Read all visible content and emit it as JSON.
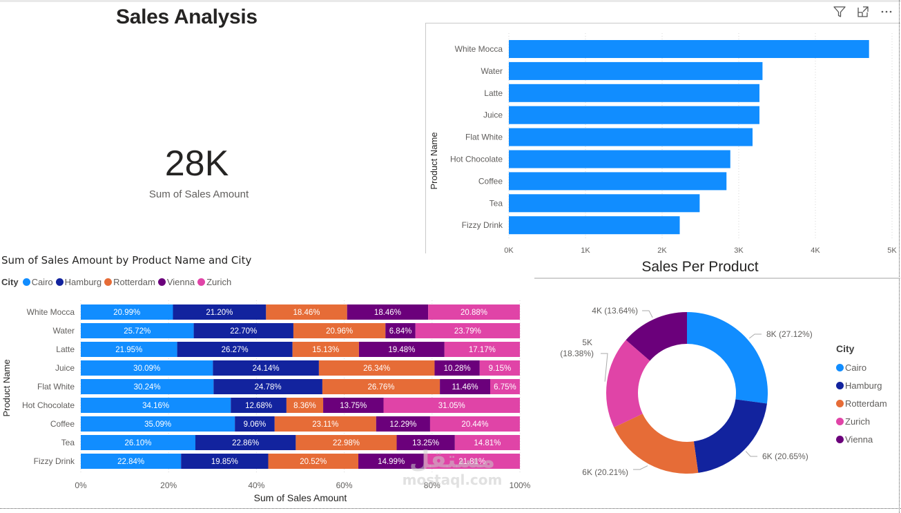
{
  "page": {
    "title": "Sales Analysis",
    "watermark_arabic": "مستقل",
    "watermark_latin": "mostaql.com"
  },
  "kpi": {
    "value": "28K",
    "label": "Sum of Sales Amount"
  },
  "visual_header": {
    "filter_icon": "filter-icon",
    "focus_icon": "focus-mode-icon",
    "more_icon": "more-options-icon"
  },
  "colors": {
    "bar": "#118DFF",
    "Cairo": "#118DFF",
    "Hamburg": "#12239E",
    "Rotterdam": "#E66C37",
    "Vienna": "#6B007B",
    "Zurich": "#E044A7"
  },
  "chart_data": [
    {
      "type": "bar",
      "orientation": "horizontal",
      "title": "Sales Per Product",
      "xlabel": "Sales Per Product",
      "ylabel": "Product Name",
      "categories": [
        "White Mocca",
        "Water",
        "Latte",
        "Juice",
        "Flat White",
        "Hot Chocolate",
        "Coffee",
        "Tea",
        "Fizzy Drink"
      ],
      "values": [
        4700,
        3310,
        3270,
        3270,
        3180,
        2890,
        2840,
        2490,
        2230
      ],
      "xlim": [
        0,
        5000
      ],
      "xticks": [
        "0K",
        "1K",
        "2K",
        "3K",
        "4K",
        "5K"
      ],
      "grid": true
    },
    {
      "type": "bar",
      "orientation": "horizontal",
      "stacked": "100%",
      "title": "Sum of Sales Amount by Product Name and City",
      "xlabel": "Sum of Sales Amount",
      "ylabel": "Product Name",
      "legend_title": "City",
      "legend_position": "top-left",
      "categories": [
        "White Mocca",
        "Water",
        "Latte",
        "Juice",
        "Flat White",
        "Hot Chocolate",
        "Coffee",
        "Tea",
        "Fizzy Drink"
      ],
      "series": [
        {
          "name": "Cairo",
          "values": [
            20.99,
            25.72,
            21.95,
            30.09,
            30.24,
            34.16,
            35.09,
            26.1,
            22.84
          ]
        },
        {
          "name": "Hamburg",
          "values": [
            21.2,
            22.7,
            26.27,
            24.14,
            24.78,
            12.68,
            9.06,
            22.86,
            19.85
          ]
        },
        {
          "name": "Rotterdam",
          "values": [
            18.46,
            20.96,
            15.13,
            26.34,
            26.76,
            8.36,
            23.11,
            22.98,
            20.52
          ]
        },
        {
          "name": "Vienna",
          "values": [
            18.46,
            6.84,
            19.48,
            10.28,
            11.46,
            13.75,
            12.29,
            13.25,
            14.99
          ]
        },
        {
          "name": "Zurich",
          "values": [
            20.88,
            23.79,
            17.17,
            9.15,
            6.75,
            31.05,
            20.44,
            14.81,
            21.81
          ]
        }
      ],
      "xlim": [
        0,
        100
      ],
      "xticks": [
        "0%",
        "20%",
        "40%",
        "60%",
        "80%",
        "100%"
      ],
      "grid": true
    },
    {
      "type": "pie",
      "donut": true,
      "title": "",
      "legend_title": "City",
      "legend_position": "right",
      "legend_order": [
        "Cairo",
        "Hamburg",
        "Rotterdam",
        "Zurich",
        "Vienna"
      ],
      "slices": [
        {
          "name": "Cairo",
          "value_label": "8K",
          "percent": 27.12
        },
        {
          "name": "Hamburg",
          "value_label": "6K",
          "percent": 20.65
        },
        {
          "name": "Rotterdam",
          "value_label": "6K",
          "percent": 20.21
        },
        {
          "name": "Zurich",
          "value_label": "5K",
          "percent": 18.38
        },
        {
          "name": "Vienna",
          "value_label": "4K",
          "percent": 13.64
        }
      ]
    }
  ]
}
